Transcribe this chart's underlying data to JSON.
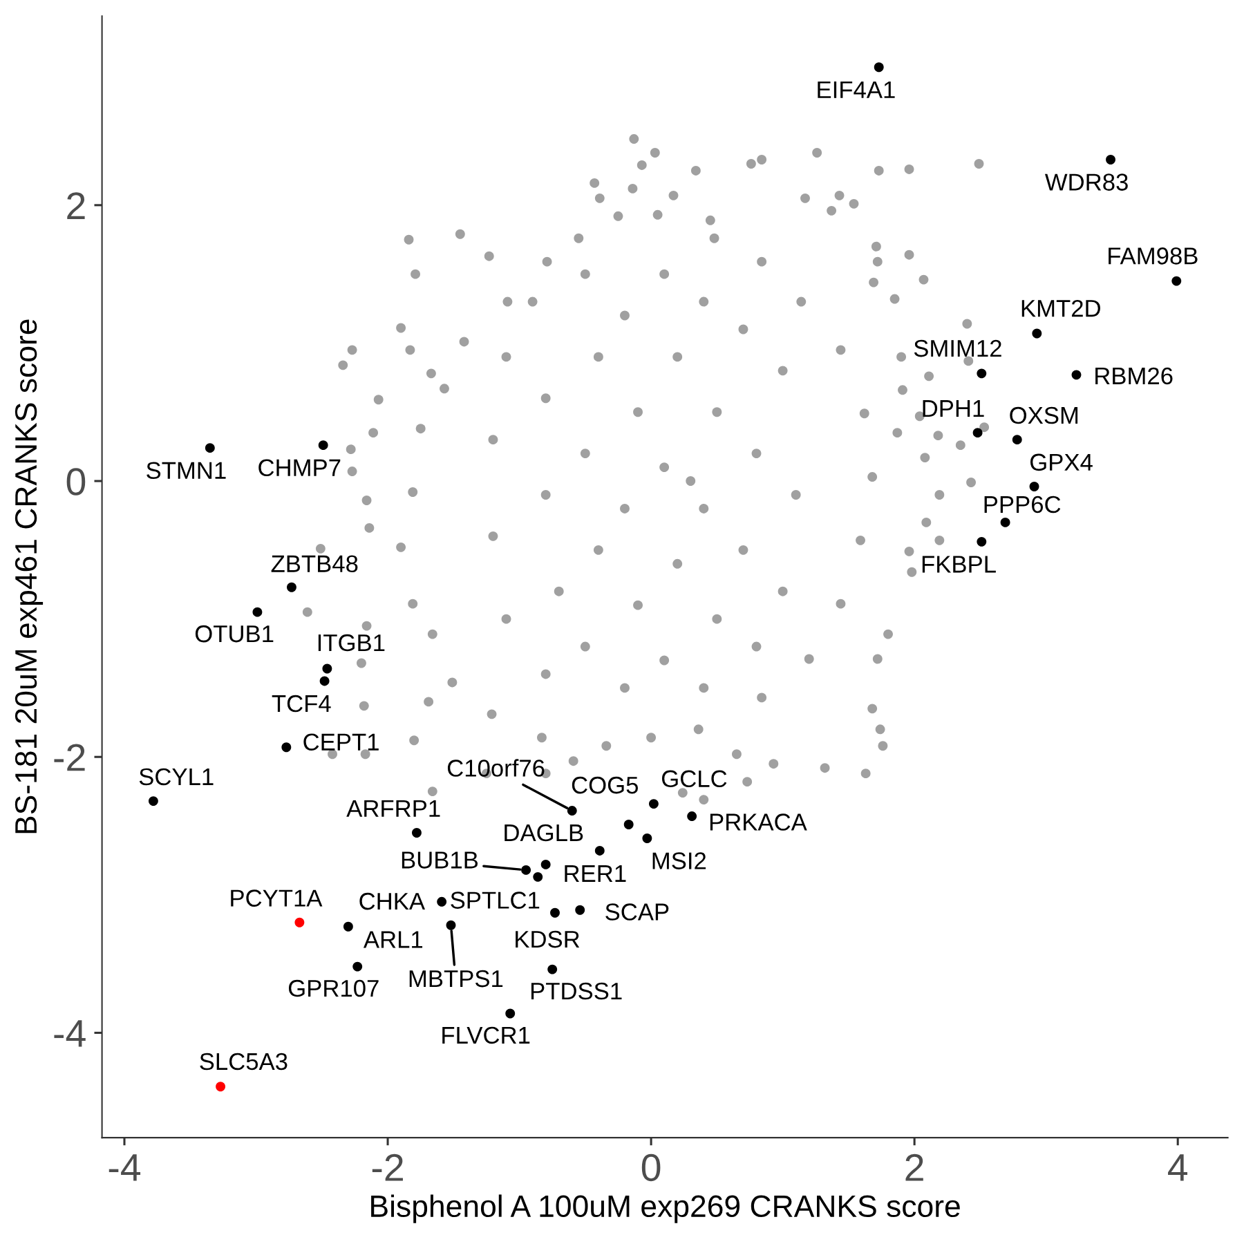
{
  "chart_data": {
    "type": "scatter",
    "xlabel": "Bisphenol A 100uM exp269 CRANKS score",
    "ylabel": "BS-181 20uM exp461 CRANKS score",
    "marker": "circle",
    "xlim": [
      -4.17,
      4.38
    ],
    "ylim": [
      -4.76,
      3.37
    ],
    "xticks": [
      -4,
      -2,
      0,
      2,
      4
    ],
    "yticks": [
      -4,
      -2,
      0,
      2
    ],
    "series": [
      {
        "color": "#a0a0a0",
        "x": [
          -0.13,
          0.03,
          -0.07,
          0.34,
          -0.14,
          -0.43,
          0.17,
          -0.39,
          0.45,
          0.05,
          -0.25,
          1.26,
          1.73,
          1.96,
          2.49,
          0.84,
          0.76,
          1.43,
          1.54,
          1.37,
          1.17,
          -1.84,
          -1.45,
          -1.79,
          -1.23,
          1.96,
          1.72,
          1.69,
          2.07,
          1.85,
          2.4,
          -2.27,
          -2.34,
          -1.9,
          -1.83,
          -1.67,
          -2.07,
          -2.11,
          -2.28,
          -2.27,
          -2.16,
          -2.14,
          -2.51,
          -2.61,
          -2.16,
          -2.2,
          -2.18,
          -1.8,
          -2.17,
          -2.42,
          -1.66,
          -1.25,
          1.91,
          2.11,
          2.18,
          2.08,
          2.43,
          2.19,
          2.09,
          2.19,
          1.96,
          1.98,
          1.8,
          1.72,
          1.68,
          1.74,
          1.76,
          1.63,
          1.32,
          0.93,
          0.65,
          0.73,
          0.4,
          0.24,
          2.41,
          2.53,
          1.87,
          2.04,
          1.9,
          2.35,
          1.71,
          -0.8,
          -0.59,
          -0.34,
          -0.83,
          -1.69,
          -1.51,
          -1.66,
          -1.81,
          -1.9,
          -1.81,
          -1.75,
          -1.57,
          -1.42,
          -1.09,
          -0.79,
          -0.55,
          0.48,
          0.84,
          1.14,
          1.44,
          1.62,
          1.68,
          1.59,
          1.44,
          1.2,
          0.84,
          0.36,
          0.0,
          -1.21,
          -1.1,
          -1.2,
          -1.2,
          -1.1,
          -0.9,
          -0.8,
          -0.8,
          -0.7,
          -0.8,
          -0.5,
          -0.4,
          -0.5,
          -0.4,
          -0.5,
          -0.2,
          -0.1,
          -0.2,
          -0.1,
          -0.2,
          0.1,
          0.2,
          0.1,
          0.2,
          0.1,
          0.4,
          0.5,
          0.4,
          0.5,
          0.4,
          0.7,
          0.8,
          0.7,
          0.8,
          1.0,
          1.1,
          1.0,
          0.3
        ],
        "values": [
          2.48,
          2.38,
          2.29,
          2.25,
          2.12,
          2.16,
          2.07,
          2.05,
          1.89,
          1.93,
          1.92,
          2.38,
          2.25,
          2.26,
          2.3,
          2.33,
          2.3,
          2.07,
          2.01,
          1.96,
          2.05,
          1.75,
          1.79,
          1.5,
          1.63,
          1.64,
          1.59,
          1.44,
          1.46,
          1.32,
          1.14,
          0.95,
          0.84,
          1.11,
          0.95,
          0.78,
          0.59,
          0.35,
          0.23,
          0.07,
          -0.14,
          -0.34,
          -0.49,
          -0.95,
          -1.05,
          -1.32,
          -1.63,
          -1.88,
          -1.98,
          -1.98,
          -2.25,
          -2.12,
          0.66,
          0.76,
          0.33,
          0.17,
          -0.01,
          -0.1,
          -0.3,
          -0.43,
          -0.51,
          -0.66,
          -1.11,
          -1.29,
          -1.65,
          -1.8,
          -1.92,
          -2.12,
          -2.08,
          -2.05,
          -1.98,
          -2.18,
          -2.31,
          -2.26,
          0.87,
          0.39,
          0.35,
          0.47,
          0.9,
          0.26,
          1.7,
          -2.12,
          -2.03,
          -1.92,
          -1.86,
          -1.6,
          -1.46,
          -1.11,
          -0.89,
          -0.48,
          -0.08,
          0.38,
          0.67,
          1.01,
          1.3,
          1.59,
          1.76,
          1.76,
          1.59,
          1.3,
          0.95,
          0.49,
          0.03,
          -0.43,
          -0.89,
          -1.29,
          -1.57,
          -1.8,
          -1.86,
          -1.69,
          0.9,
          0.3,
          -0.4,
          -1.0,
          1.3,
          0.6,
          -0.1,
          -0.8,
          -1.4,
          1.5,
          0.9,
          0.2,
          -0.5,
          -1.2,
          1.2,
          0.5,
          -0.2,
          -0.9,
          -1.5,
          1.5,
          0.9,
          0.1,
          -0.6,
          -1.3,
          1.3,
          0.5,
          -0.2,
          -1.0,
          -1.5,
          1.1,
          0.2,
          -0.5,
          -1.2,
          0.8,
          -0.1,
          -0.8,
          0.0
        ]
      },
      {
        "color": "#000000",
        "x": [
          1.73,
          3.49,
          3.99,
          2.93,
          3.23,
          2.51,
          2.48,
          2.78,
          2.91,
          2.69,
          2.51,
          -3.35,
          -2.49,
          -2.73,
          -2.99,
          -2.46,
          -2.48,
          -2.77,
          -3.78,
          -1.78,
          -0.6,
          -0.17,
          0.02,
          0.31,
          -0.03,
          -0.39,
          -0.95,
          -0.8,
          -0.86,
          -1.59,
          -1.52,
          -2.3,
          -2.23,
          -0.73,
          -0.54,
          -0.75,
          -1.07
        ],
        "values": [
          3.0,
          2.33,
          1.45,
          1.07,
          0.77,
          0.78,
          0.35,
          0.3,
          -0.04,
          -0.3,
          -0.44,
          0.24,
          0.26,
          -0.77,
          -0.95,
          -1.36,
          -1.45,
          -1.93,
          -2.32,
          -2.55,
          -2.39,
          -2.49,
          -2.34,
          -2.43,
          -2.59,
          -2.68,
          -2.82,
          -2.78,
          -2.87,
          -3.05,
          -3.22,
          -3.23,
          -3.52,
          -3.13,
          -3.11,
          -3.54,
          -3.86
        ]
      },
      {
        "color": "#ff0000",
        "x": [
          -2.67,
          -3.27
        ],
        "values": [
          -3.2,
          -4.39
        ]
      }
    ],
    "annotations": [
      {
        "text": "EIF4A1",
        "x": 1.73,
        "y": 3.0
      },
      {
        "text": "WDR83",
        "x": 3.49,
        "y": 2.33
      },
      {
        "text": "FAM98B",
        "x": 3.99,
        "y": 1.45
      },
      {
        "text": "KMT2D",
        "x": 2.93,
        "y": 1.07
      },
      {
        "text": "RBM26",
        "x": 3.23,
        "y": 0.77
      },
      {
        "text": "SMIM12",
        "x": 2.51,
        "y": 0.78
      },
      {
        "text": "DPH1",
        "x": 2.48,
        "y": 0.35
      },
      {
        "text": "OXSM",
        "x": 2.78,
        "y": 0.3
      },
      {
        "text": "GPX4",
        "x": 2.91,
        "y": -0.04
      },
      {
        "text": "PPP6C",
        "x": 2.69,
        "y": -0.3
      },
      {
        "text": "FKBPL",
        "x": 2.51,
        "y": -0.44
      },
      {
        "text": "STMN1",
        "x": -3.35,
        "y": 0.24
      },
      {
        "text": "CHMP7",
        "x": -2.49,
        "y": 0.26
      },
      {
        "text": "ZBTB48",
        "x": -2.73,
        "y": -0.77
      },
      {
        "text": "OTUB1",
        "x": -2.99,
        "y": -0.95
      },
      {
        "text": "ITGB1",
        "x": -2.46,
        "y": -1.36
      },
      {
        "text": "TCF4",
        "x": -2.48,
        "y": -1.45
      },
      {
        "text": "CEPT1",
        "x": -2.77,
        "y": -1.93
      },
      {
        "text": "SCYL1",
        "x": -3.78,
        "y": -2.32
      },
      {
        "text": "ARFRP1",
        "x": -1.78,
        "y": -2.55
      },
      {
        "text": "C10orf76",
        "x": -0.6,
        "y": -2.39
      },
      {
        "text": "COG5",
        "x": -0.17,
        "y": -2.49
      },
      {
        "text": "GCLC",
        "x": 0.02,
        "y": -2.34
      },
      {
        "text": "PRKACA",
        "x": 0.31,
        "y": -2.43
      },
      {
        "text": "MSI2",
        "x": -0.03,
        "y": -2.59
      },
      {
        "text": "DAGLB",
        "x": -0.39,
        "y": -2.68
      },
      {
        "text": "BUB1B",
        "x": -0.95,
        "y": -2.82
      },
      {
        "text": "RER1",
        "x": -0.8,
        "y": -2.78
      },
      {
        "text": "SPTLC1",
        "x": -0.86,
        "y": -2.87
      },
      {
        "text": "CHKA",
        "x": -1.59,
        "y": -3.05
      },
      {
        "text": "MBTPS1",
        "x": -1.52,
        "y": -3.22
      },
      {
        "text": "ARL1",
        "x": -2.3,
        "y": -3.23
      },
      {
        "text": "GPR107",
        "x": -2.23,
        "y": -3.52
      },
      {
        "text": "KDSR",
        "x": -0.73,
        "y": -3.13
      },
      {
        "text": "SCAP",
        "x": -0.54,
        "y": -3.11
      },
      {
        "text": "PTDSS1",
        "x": -0.75,
        "y": -3.54
      },
      {
        "text": "FLVCR1",
        "x": -1.07,
        "y": -3.86
      },
      {
        "text": "PCYT1A",
        "x": -2.67,
        "y": -3.2
      },
      {
        "text": "SLC5A3",
        "x": -3.27,
        "y": -4.39
      }
    ]
  }
}
